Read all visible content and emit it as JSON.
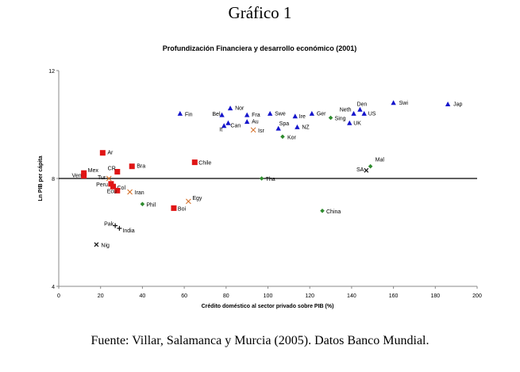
{
  "page": {
    "heading": "Gráfico 1",
    "source": "Fuente: Villar, Salamanca y Murcia (2005). Datos Banco Mundial."
  },
  "chart_data": {
    "type": "scatter",
    "title": "Profundización Financiera y desarrollo económico (2001)",
    "xlabel": "Crédito doméstico al sector privado sobre PIB (%)",
    "ylabel": "Ln PIB per cápita",
    "xlim": [
      0,
      200
    ],
    "ylim": [
      4,
      12
    ],
    "xticks": [
      "0",
      "20",
      "40",
      "60",
      "80",
      "100",
      "120",
      "140",
      "160",
      "180",
      "200"
    ],
    "yticks": [
      "4",
      "8",
      "12"
    ],
    "reference_line_y": 8,
    "grid": false,
    "legend": "none",
    "colors": {
      "triangle": "#1515cc",
      "square": "#e01515",
      "diamond": "#2e8b2e",
      "cross": "#d2691e",
      "plus": "#111111",
      "x": "#111111",
      "refline": "#000000",
      "axis": "#888888"
    },
    "points": [
      {
        "label": "Jap",
        "x": 186,
        "y": 10.75,
        "marker": "triangle"
      },
      {
        "label": "Swi",
        "x": 160,
        "y": 10.8,
        "marker": "triangle"
      },
      {
        "label": "Den",
        "x": 144,
        "y": 10.55,
        "marker": "triangle"
      },
      {
        "label": "Neth",
        "x": 141,
        "y": 10.4,
        "marker": "triangle"
      },
      {
        "label": "US",
        "x": 146,
        "y": 10.4,
        "marker": "triangle"
      },
      {
        "label": "UK",
        "x": 139,
        "y": 10.05,
        "marker": "triangle"
      },
      {
        "label": "Ger",
        "x": 121,
        "y": 10.4,
        "marker": "triangle"
      },
      {
        "label": "Ire",
        "x": 113,
        "y": 10.3,
        "marker": "triangle"
      },
      {
        "label": "Swe",
        "x": 101,
        "y": 10.4,
        "marker": "triangle"
      },
      {
        "label": "Spa",
        "x": 105,
        "y": 9.85,
        "marker": "triangle"
      },
      {
        "label": "NZ",
        "x": 114,
        "y": 9.9,
        "marker": "triangle"
      },
      {
        "label": "Nor",
        "x": 82,
        "y": 10.6,
        "marker": "triangle"
      },
      {
        "label": "Bel",
        "x": 78,
        "y": 10.35,
        "marker": "triangle"
      },
      {
        "label": "Fra",
        "x": 90,
        "y": 10.35,
        "marker": "triangle"
      },
      {
        "label": "Can",
        "x": 81,
        "y": 10.05,
        "marker": "triangle"
      },
      {
        "label": "Au",
        "x": 90,
        "y": 10.1,
        "marker": "triangle"
      },
      {
        "label": "It",
        "x": 79,
        "y": 9.95,
        "marker": "triangle"
      },
      {
        "label": "Fin",
        "x": 58,
        "y": 10.4,
        "marker": "triangle"
      },
      {
        "label": "Isr",
        "x": 93,
        "y": 9.8,
        "marker": "cross"
      },
      {
        "label": "Sing",
        "x": 130,
        "y": 10.25,
        "marker": "diamond"
      },
      {
        "label": "Kor",
        "x": 107,
        "y": 9.55,
        "marker": "diamond"
      },
      {
        "label": "Mal",
        "x": 149,
        "y": 8.45,
        "marker": "diamond"
      },
      {
        "label": "SA",
        "x": 147,
        "y": 8.3,
        "marker": "x"
      },
      {
        "label": "Tha",
        "x": 97,
        "y": 8.0,
        "marker": "diamond"
      },
      {
        "label": "China",
        "x": 126,
        "y": 6.8,
        "marker": "diamond"
      },
      {
        "label": "Phil",
        "x": 40,
        "y": 7.05,
        "marker": "diamond"
      },
      {
        "label": "Chile",
        "x": 65,
        "y": 8.6,
        "marker": "square"
      },
      {
        "label": "Ar",
        "x": 21,
        "y": 8.95,
        "marker": "square"
      },
      {
        "label": "Mex",
        "x": 12,
        "y": 8.2,
        "marker": "square"
      },
      {
        "label": "Ven",
        "x": 12,
        "y": 8.1,
        "marker": "square"
      },
      {
        "label": "CR",
        "x": 28,
        "y": 8.25,
        "marker": "square"
      },
      {
        "label": "Bra",
        "x": 35,
        "y": 8.45,
        "marker": "square"
      },
      {
        "label": "Tur",
        "x": 24,
        "y": 8.0,
        "marker": "cross"
      },
      {
        "label": "Peru",
        "x": 25,
        "y": 7.8,
        "marker": "square"
      },
      {
        "label": "Col",
        "x": 26,
        "y": 7.7,
        "marker": "square"
      },
      {
        "label": "Ecu",
        "x": 28,
        "y": 7.55,
        "marker": "square"
      },
      {
        "label": "Iran",
        "x": 34,
        "y": 7.5,
        "marker": "cross"
      },
      {
        "label": "Egy",
        "x": 62,
        "y": 7.15,
        "marker": "cross"
      },
      {
        "label": "Boi",
        "x": 55,
        "y": 6.9,
        "marker": "square"
      },
      {
        "label": "Pak",
        "x": 27,
        "y": 6.25,
        "marker": "plus"
      },
      {
        "label": "India",
        "x": 29,
        "y": 6.15,
        "marker": "plus"
      },
      {
        "label": "Nig",
        "x": 18,
        "y": 5.55,
        "marker": "x"
      }
    ]
  }
}
